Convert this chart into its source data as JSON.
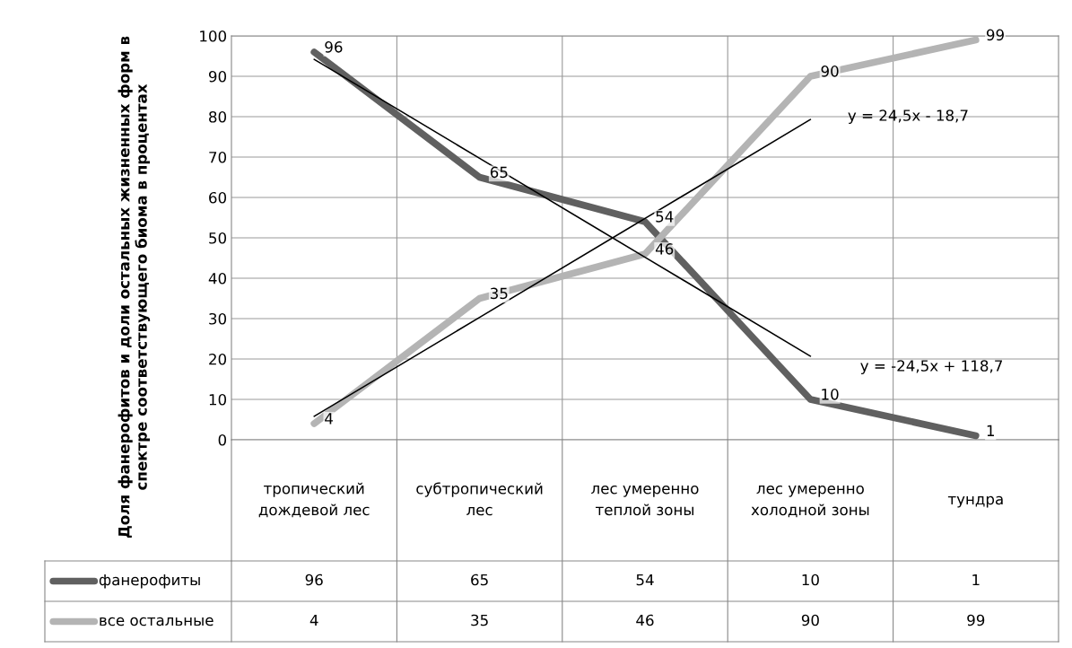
{
  "chart_data": {
    "type": "line",
    "categories": [
      "тропический дождевой лес",
      "субтропический лес",
      "лес умеренно теплой зоны",
      "лес умеренно холодной зоны",
      "тундра"
    ],
    "series": [
      {
        "name": "фанерофиты",
        "color": "#606060",
        "values": [
          96,
          65,
          54,
          10,
          1
        ]
      },
      {
        "name": "все остальные",
        "color": "#b4b4b4",
        "values": [
          4,
          35,
          46,
          90,
          99
        ]
      },
      {
        "type": "line",
        "color": "#000000",
        "values": [
          5.8,
          30.3,
          54.8,
          79.3,
          null
        ],
        "value_labels": [
          null,
          null,
          null,
          null,
          null
        ]
      },
      {
        "type": "line",
        "color": "#000000",
        "values": [
          94.2,
          69.7,
          45.2,
          20.7,
          null
        ],
        "value_labels": [
          null,
          null,
          null,
          null,
          null
        ]
      }
    ],
    "ylabel": "Доля фанерофитов и доли остальных жизненных форм в спектре соответствующего биома в процентах",
    "ylim": [
      0,
      100
    ],
    "yticks": [
      0,
      10,
      20,
      30,
      40,
      50,
      60,
      70,
      80,
      90,
      100
    ],
    "grid": true,
    "data_labels": true,
    "legend": "bottom",
    "annotations": [
      "y = 24,5x - 18,7",
      "y = -24,5x + 118,7",
      {
        "text": "96",
        "x": "тропический дождевой лес",
        "y": 96
      },
      {
        "text": "65",
        "x": "субтропический лес",
        "y": 65
      },
      {
        "text": "54",
        "x": "лес умеренно теплой зоны",
        "y": 54
      },
      {
        "text": "10",
        "x": "лес умеренно холодной зоны",
        "y": 10
      },
      {
        "text": "1",
        "x": "тундра",
        "y": 1
      },
      {
        "text": "4",
        "x": "тропический дождевой лес",
        "y": 4
      },
      {
        "text": "35",
        "x": "субтропический лес",
        "y": 35
      },
      {
        "text": "46",
        "x": "лес умеренно теплой зоны",
        "y": 46
      },
      {
        "text": "90",
        "x": "лес умеренно холодной зоны",
        "y": 90
      },
      {
        "text": "99",
        "x": "тундра",
        "y": 99
      }
    ]
  }
}
